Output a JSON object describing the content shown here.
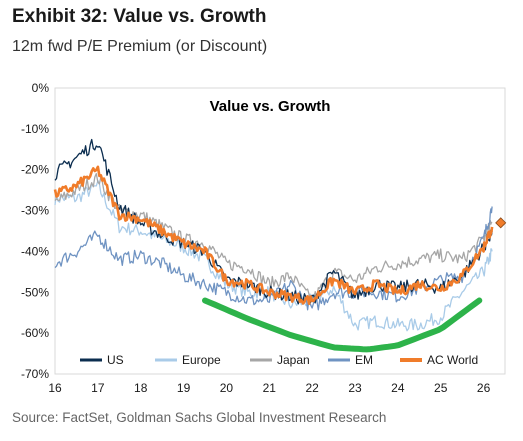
{
  "header": {
    "exhibit_title": "Exhibit 32: Value vs. Growth",
    "subtitle": "12m fwd P/E Premium (or Discount)"
  },
  "source": "Source: FactSet, Goldman Sachs Global Investment Research",
  "chart_data": {
    "type": "line",
    "title": "Value vs. Growth",
    "xlabel": "",
    "ylabel": "",
    "x_ticks": [
      "16",
      "17",
      "18",
      "19",
      "20",
      "21",
      "22",
      "23",
      "24",
      "25",
      "26"
    ],
    "y_ticks": [
      "0%",
      "-10%",
      "-20%",
      "-30%",
      "-40%",
      "-50%",
      "-60%",
      "-70%"
    ],
    "xlim": [
      2016,
      2026.5
    ],
    "ylim": [
      -70,
      0
    ],
    "grid": false,
    "legend_position": "bottom",
    "x": [
      2016,
      2016.5,
      2017,
      2017.5,
      2018,
      2018.5,
      2019,
      2019.5,
      2020,
      2020.5,
      2021,
      2021.5,
      2022,
      2022.5,
      2023,
      2023.5,
      2024,
      2024.5,
      2025,
      2025.5,
      2026,
      2026.2
    ],
    "series": [
      {
        "name": "US",
        "color": "#0b2d4f",
        "values": [
          -21,
          -17,
          -13,
          -29,
          -33,
          -36,
          -38,
          -40,
          -47,
          -48,
          -50,
          -51,
          -52,
          -45,
          -51,
          -48,
          -49,
          -48,
          -49,
          -46,
          -39,
          -35
        ]
      },
      {
        "name": "Europe",
        "color": "#a9cbe8",
        "values": [
          -27,
          -27,
          -24,
          -34,
          -35,
          -37,
          -39,
          -42,
          -48,
          -50,
          -50,
          -53,
          -52,
          -49,
          -58,
          -57,
          -58,
          -58,
          -56,
          -50,
          -45,
          -40
        ]
      },
      {
        "name": "Japan",
        "color": "#a6a6a6",
        "values": [
          -28,
          -25,
          -22,
          -30,
          -31,
          -34,
          -37,
          -38,
          -43,
          -44,
          -48,
          -46,
          -52,
          -45,
          -47,
          -44,
          -43,
          -42,
          -41,
          -42,
          -37,
          -33
        ]
      },
      {
        "name": "EM",
        "color": "#6f93c2",
        "values": [
          -43,
          -40,
          -36,
          -42,
          -41,
          -43,
          -46,
          -48,
          -50,
          -52,
          -52,
          -48,
          -54,
          -50,
          -50,
          -50,
          -51,
          -49,
          -47,
          -46,
          -37,
          -29
        ]
      },
      {
        "name": "AC World",
        "color": "#f07c2a",
        "values": [
          -26,
          -24,
          -20,
          -31,
          -32,
          -35,
          -38,
          -40,
          -47,
          -48,
          -50,
          -51,
          -52,
          -47,
          -50,
          -48,
          -50,
          -48,
          -49,
          -46,
          -39,
          -34
        ]
      }
    ],
    "last_point_marker": {
      "series": "AC World",
      "x": 2026.4,
      "y": -33
    },
    "trend_curve": {
      "color": "#2db34a",
      "x": [
        2019.5,
        2020.5,
        2021.5,
        2022.5,
        2023.3,
        2024,
        2025,
        2025.9
      ],
      "y": [
        -52,
        -56.5,
        -60.5,
        -63.5,
        -64,
        -63,
        -59,
        -52
      ]
    }
  }
}
